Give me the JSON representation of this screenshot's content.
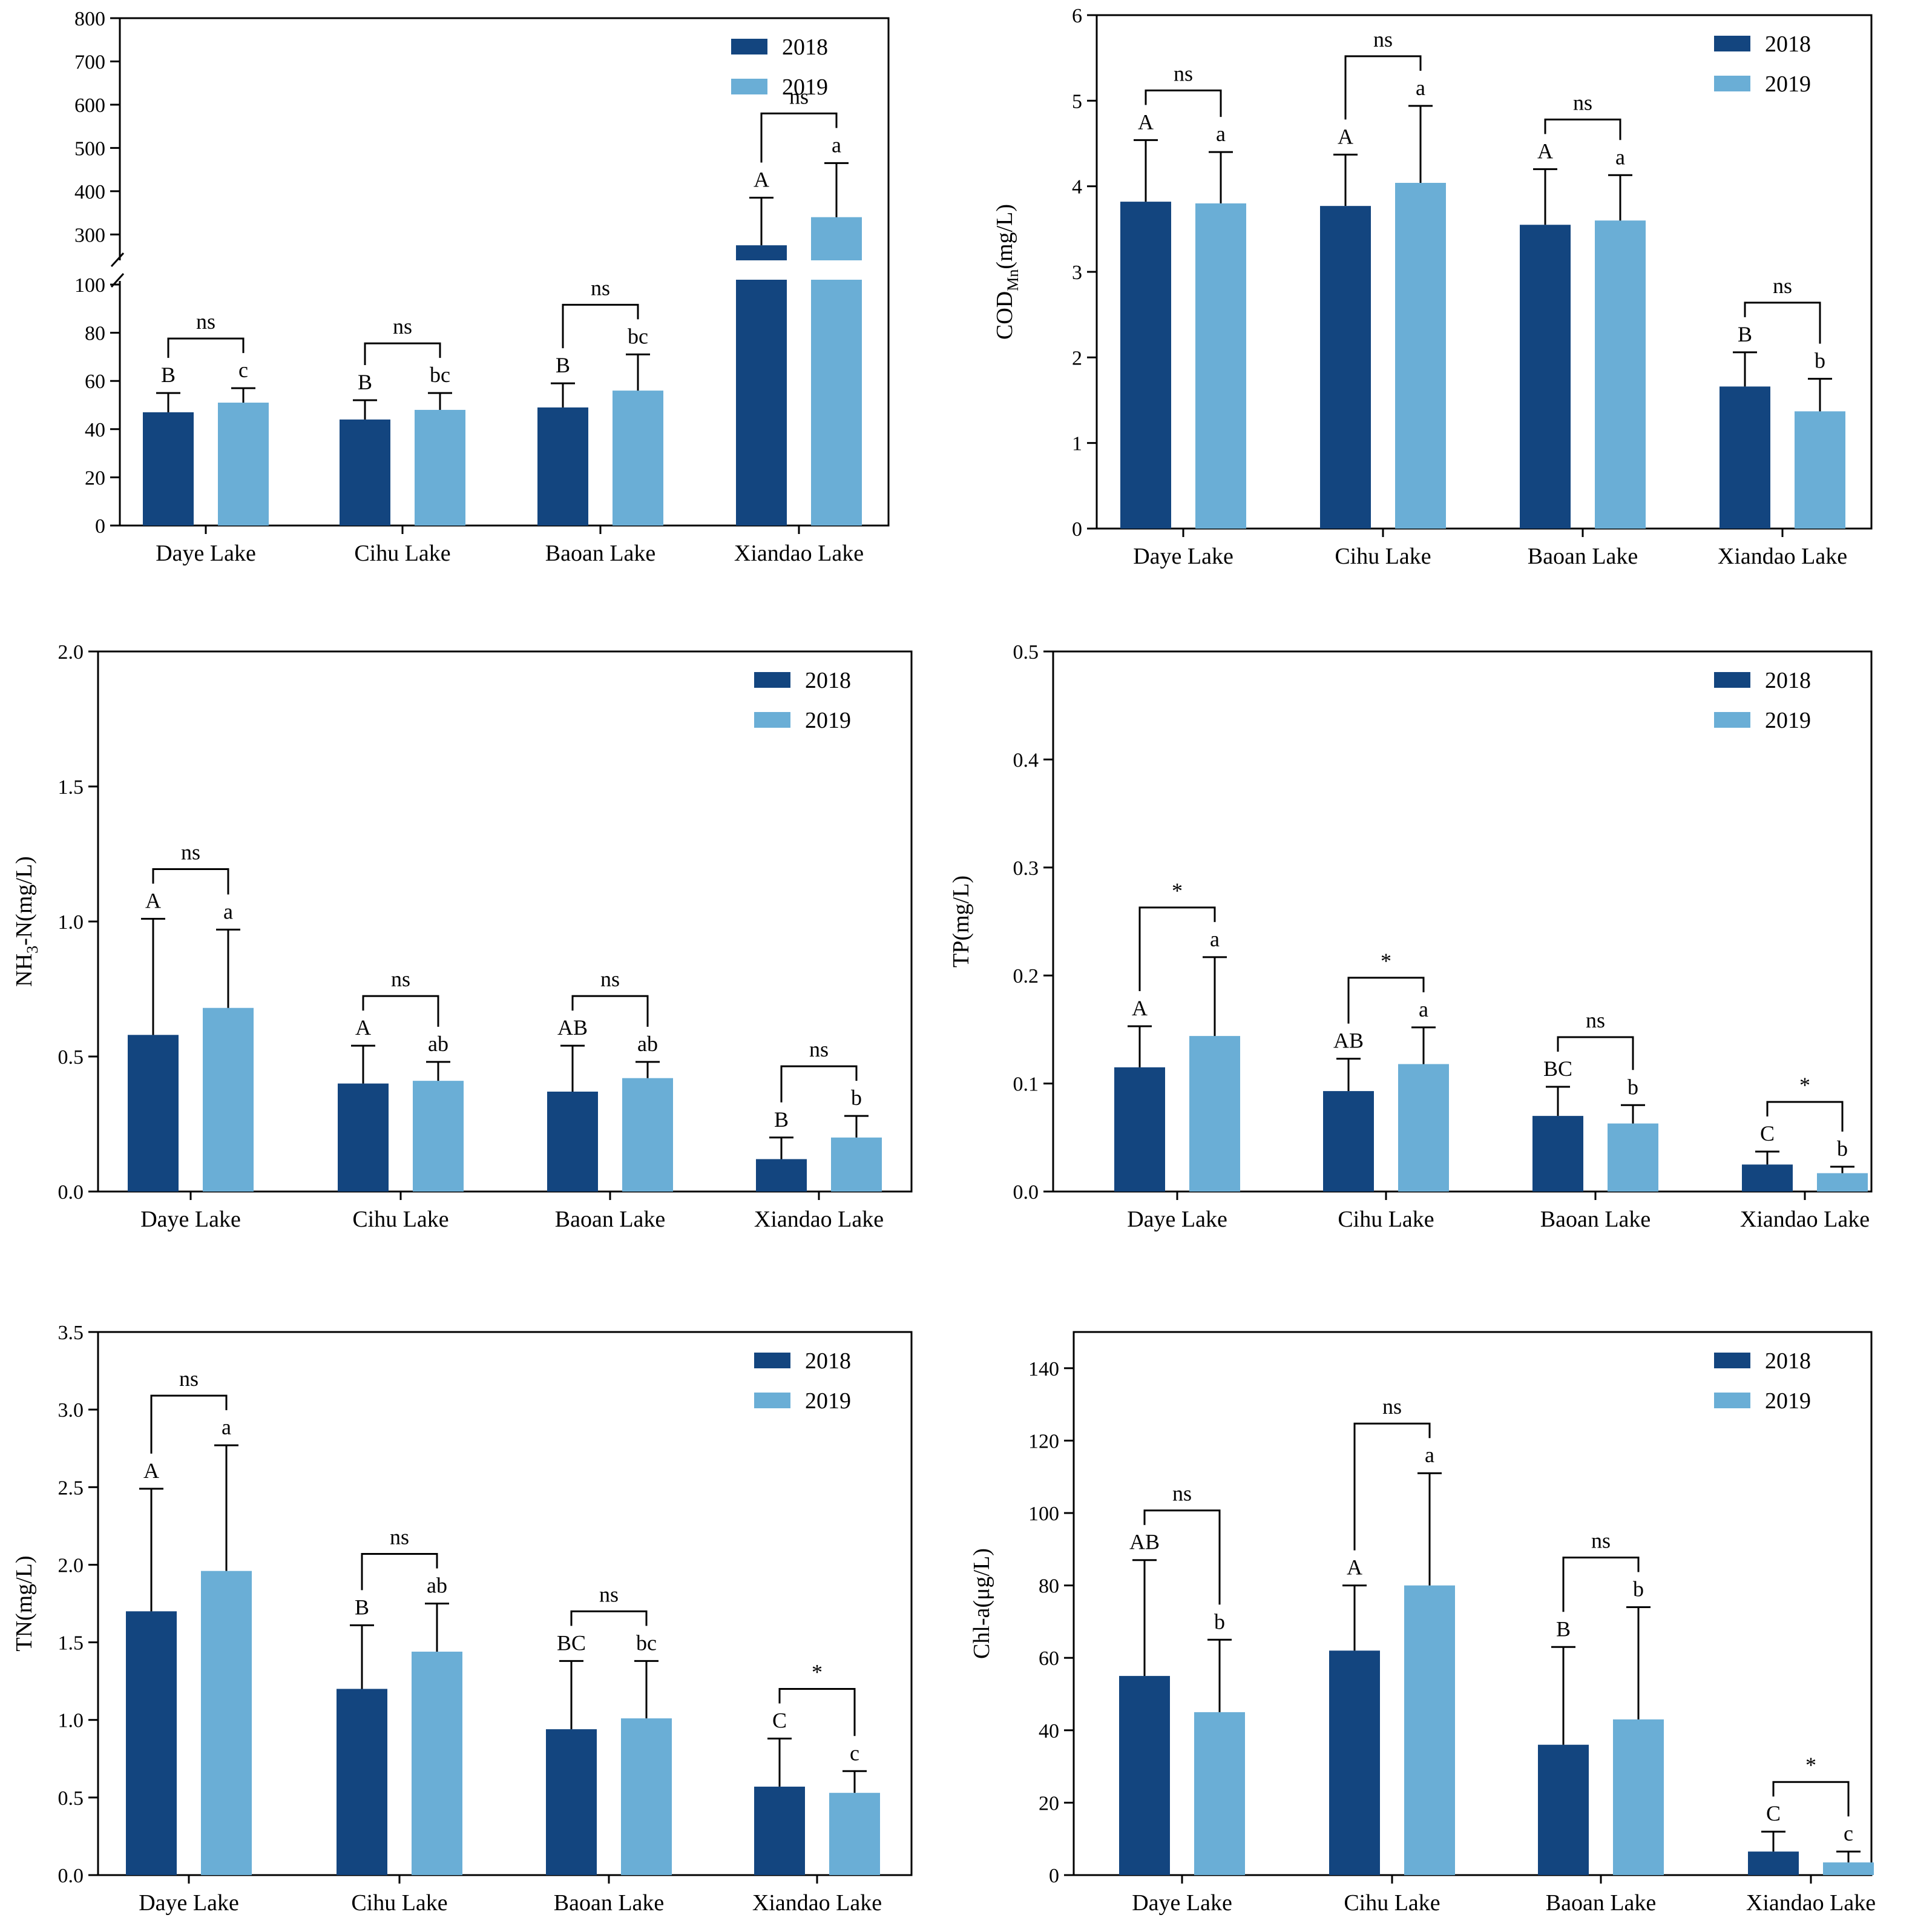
{
  "colors": {
    "y2018": "#13457f",
    "y2019": "#6aaed6",
    "axis": "#000000"
  },
  "legend": [
    "2018",
    "2019"
  ],
  "chart_data": [
    {
      "type": "bar",
      "id": "panel1",
      "ylabel": "",
      "ylabel_sub": "",
      "ylabel_tail": "",
      "categories": [
        "Daye Lake",
        "Cihu Lake",
        "Baoan Lake",
        "Xiandao Lake"
      ],
      "axis_break": true,
      "yticks_lower": [
        "0",
        "20",
        "40",
        "60",
        "80",
        "100"
      ],
      "yticks_upper": [
        "300",
        "400",
        "500",
        "600",
        "700",
        "800"
      ],
      "series": [
        {
          "name": "2018",
          "values": [
            47,
            44,
            49,
            275
          ],
          "errors": [
            8,
            8,
            10,
            110
          ]
        },
        {
          "name": "2019",
          "values": [
            51,
            48,
            56,
            340
          ],
          "errors": [
            6,
            7,
            15,
            125
          ]
        }
      ],
      "letters_2018": [
        "B",
        "B",
        "B",
        "A"
      ],
      "letters_2019": [
        "c",
        "bc",
        "bc",
        "a"
      ],
      "significance": [
        "ns",
        "ns",
        "ns",
        "ns"
      ]
    },
    {
      "type": "bar",
      "id": "panel2",
      "ylabel": "COD",
      "ylabel_sub": "Mn",
      "ylabel_tail": "(mg/L)",
      "categories": [
        "Daye Lake",
        "Cihu Lake",
        "Baoan Lake",
        "Xiandao Lake"
      ],
      "ylim": [
        0,
        6
      ],
      "yticks": [
        0,
        1,
        2,
        3,
        4,
        5,
        6
      ],
      "ytick_labels": [
        "0",
        "1",
        "2",
        "3",
        "4",
        "5",
        "6"
      ],
      "series": [
        {
          "name": "2018",
          "values": [
            3.82,
            3.77,
            3.55,
            1.66
          ],
          "errors": [
            0.72,
            0.6,
            0.65,
            0.4
          ]
        },
        {
          "name": "2019",
          "values": [
            3.8,
            4.04,
            3.6,
            1.37
          ],
          "errors": [
            0.6,
            0.9,
            0.53,
            0.38
          ]
        }
      ],
      "letters_2018": [
        "A",
        "A",
        "A",
        "B"
      ],
      "letters_2019": [
        "a",
        "a",
        "a",
        "b"
      ],
      "significance": [
        "ns",
        "ns",
        "ns",
        "ns"
      ]
    },
    {
      "type": "bar",
      "id": "panel3",
      "ylabel": "NH",
      "ylabel_sub": "3",
      "ylabel_tail": "-N(mg/L)",
      "categories": [
        "Daye Lake",
        "Cihu Lake",
        "Baoan Lake",
        "Xiandao Lake"
      ],
      "ylim": [
        0,
        2.0
      ],
      "yticks": [
        0,
        0.5,
        1.0,
        1.5,
        2.0
      ],
      "ytick_labels": [
        "0.0",
        "0.5",
        "1.0",
        "1.5",
        "2.0"
      ],
      "series": [
        {
          "name": "2018",
          "values": [
            0.58,
            0.4,
            0.37,
            0.12
          ],
          "errors": [
            0.43,
            0.14,
            0.17,
            0.08
          ]
        },
        {
          "name": "2019",
          "values": [
            0.68,
            0.41,
            0.42,
            0.2
          ],
          "errors": [
            0.29,
            0.07,
            0.06,
            0.08
          ]
        }
      ],
      "letters_2018": [
        "A",
        "A",
        "AB",
        "B"
      ],
      "letters_2019": [
        "a",
        "ab",
        "ab",
        "b"
      ],
      "significance": [
        "ns",
        "ns",
        "ns",
        "ns"
      ]
    },
    {
      "type": "bar",
      "id": "panel4",
      "ylabel": "TP(mg/L)",
      "ylabel_sub": "",
      "ylabel_tail": "",
      "categories": [
        "Daye Lake",
        "Cihu Lake",
        "Baoan Lake",
        "Xiandao Lake"
      ],
      "ylim": [
        0,
        0.5
      ],
      "yticks": [
        0,
        0.1,
        0.2,
        0.3,
        0.4,
        0.5
      ],
      "ytick_labels": [
        "0.0",
        "0.1",
        "0.2",
        "0.3",
        "0.4",
        "0.5"
      ],
      "series": [
        {
          "name": "2018",
          "values": [
            0.115,
            0.093,
            0.07,
            0.025
          ],
          "errors": [
            0.038,
            0.03,
            0.027,
            0.012
          ]
        },
        {
          "name": "2019",
          "values": [
            0.144,
            0.118,
            0.063,
            0.017
          ],
          "errors": [
            0.073,
            0.034,
            0.017,
            0.006
          ]
        }
      ],
      "letters_2018": [
        "A",
        "AB",
        "BC",
        "C"
      ],
      "letters_2019": [
        "a",
        "a",
        "b",
        "b"
      ],
      "significance": [
        "*",
        "*",
        "ns",
        "*"
      ]
    },
    {
      "type": "bar",
      "id": "panel5",
      "ylabel": "TN(mg/L)",
      "ylabel_sub": "",
      "ylabel_tail": "",
      "categories": [
        "Daye Lake",
        "Cihu Lake",
        "Baoan Lake",
        "Xiandao Lake"
      ],
      "ylim": [
        0,
        3.5
      ],
      "yticks": [
        0,
        0.5,
        1.0,
        1.5,
        2.0,
        2.5,
        3.0,
        3.5
      ],
      "ytick_labels": [
        "0.0",
        "0.5",
        "1.0",
        "1.5",
        "2.0",
        "2.5",
        "3.0",
        "3.5"
      ],
      "series": [
        {
          "name": "2018",
          "values": [
            1.7,
            1.2,
            0.94,
            0.57
          ],
          "errors": [
            0.79,
            0.41,
            0.44,
            0.31
          ]
        },
        {
          "name": "2019",
          "values": [
            1.96,
            1.44,
            1.01,
            0.53
          ],
          "errors": [
            0.81,
            0.31,
            0.37,
            0.14
          ]
        }
      ],
      "letters_2018": [
        "A",
        "B",
        "BC",
        "C"
      ],
      "letters_2019": [
        "a",
        "ab",
        "bc",
        "c"
      ],
      "significance": [
        "ns",
        "ns",
        "ns",
        "*"
      ]
    },
    {
      "type": "bar",
      "id": "panel6",
      "ylabel": "Chl-a(μg/L)",
      "ylabel_sub": "",
      "ylabel_tail": "",
      "categories": [
        "Daye Lake",
        "Cihu Lake",
        "Baoan Lake",
        "Xiandao Lake"
      ],
      "ylim": [
        0,
        150
      ],
      "yticks": [
        0,
        20,
        40,
        60,
        80,
        100,
        120,
        140
      ],
      "ytick_labels": [
        "0",
        "20",
        "40",
        "60",
        "80",
        "100",
        "120",
        "140"
      ],
      "series": [
        {
          "name": "2018",
          "values": [
            55,
            62,
            36,
            6.5
          ],
          "errors": [
            32,
            18,
            27,
            5.5
          ]
        },
        {
          "name": "2019",
          "values": [
            45,
            80,
            43,
            3.5
          ],
          "errors": [
            20,
            31,
            31,
            3
          ]
        }
      ],
      "letters_2018": [
        "AB",
        "A",
        "B",
        "C"
      ],
      "letters_2019": [
        "b",
        "a",
        "b",
        "c"
      ],
      "significance": [
        "ns",
        "ns",
        "ns",
        "*"
      ]
    }
  ]
}
